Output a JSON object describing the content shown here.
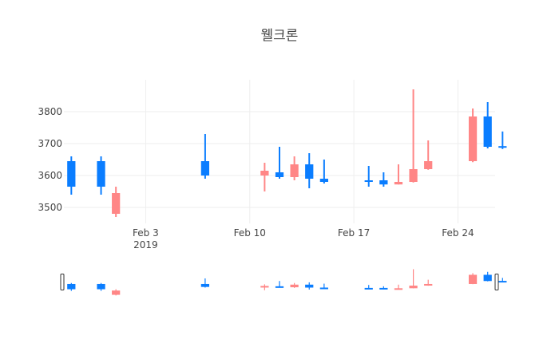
{
  "chart_data": {
    "type": "candlestick",
    "title": "웰크론",
    "x_tick_labels": [
      "Feb 3",
      "Feb 10",
      "Feb 17",
      "Feb 24"
    ],
    "x_year_label": "2019",
    "y_tick_labels": [
      "3500",
      "3600",
      "3700",
      "3800"
    ],
    "ylim": [
      3450,
      3900
    ],
    "xlim": [
      "2019-01-28T12:00",
      "2019-02-26T12:00"
    ],
    "grid": true,
    "range_slider": true,
    "increasing_color": "#FF8686",
    "decreasing_color": "#0A7DFF",
    "candles": [
      {
        "date": "2019-01-29",
        "open": 3645,
        "high": 3660,
        "low": 3540,
        "close": 3565
      },
      {
        "date": "2019-01-31",
        "open": 3645,
        "high": 3660,
        "low": 3540,
        "close": 3565
      },
      {
        "date": "2019-02-01",
        "open": 3480,
        "high": 3565,
        "low": 3470,
        "close": 3545
      },
      {
        "date": "2019-02-07",
        "open": 3645,
        "high": 3730,
        "low": 3590,
        "close": 3600
      },
      {
        "date": "2019-02-11",
        "open": 3600,
        "high": 3640,
        "low": 3550,
        "close": 3615
      },
      {
        "date": "2019-02-12",
        "open": 3610,
        "high": 3690,
        "low": 3590,
        "close": 3595
      },
      {
        "date": "2019-02-13",
        "open": 3595,
        "high": 3660,
        "low": 3585,
        "close": 3635
      },
      {
        "date": "2019-02-14",
        "open": 3635,
        "high": 3670,
        "low": 3560,
        "close": 3590
      },
      {
        "date": "2019-02-15",
        "open": 3590,
        "high": 3650,
        "low": 3575,
        "close": 3580
      },
      {
        "date": "2019-02-18",
        "open": 3585,
        "high": 3630,
        "low": 3565,
        "close": 3583
      },
      {
        "date": "2019-02-19",
        "open": 3585,
        "high": 3610,
        "low": 3565,
        "close": 3572
      },
      {
        "date": "2019-02-20",
        "open": 3572,
        "high": 3635,
        "low": 3572,
        "close": 3580
      },
      {
        "date": "2019-02-21",
        "open": 3580,
        "high": 3870,
        "low": 3578,
        "close": 3620
      },
      {
        "date": "2019-02-22",
        "open": 3620,
        "high": 3710,
        "low": 3618,
        "close": 3645
      },
      {
        "date": "2019-02-25",
        "open": 3645,
        "high": 3810,
        "low": 3642,
        "close": 3785
      },
      {
        "date": "2019-02-26",
        "open": 3785,
        "high": 3830,
        "low": 3685,
        "close": 3690
      },
      {
        "date": "2019-02-27",
        "open": 3692,
        "high": 3738,
        "low": 3683,
        "close": 3688
      }
    ]
  }
}
